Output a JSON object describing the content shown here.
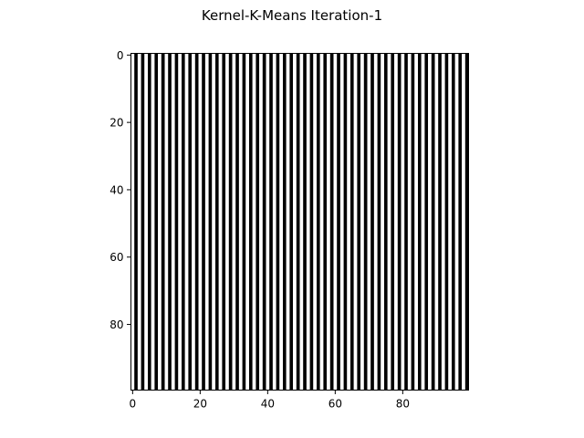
{
  "chart_data": {
    "type": "heatmap",
    "title": "Kernel-K-Means Iteration-1",
    "xlabel": "",
    "ylabel": "",
    "rows": 100,
    "cols": 100,
    "pattern": "alternating vertical stripes, period 2 columns",
    "column_values": [
      0,
      1,
      0,
      1,
      0,
      1,
      0,
      1,
      0,
      1,
      0,
      1,
      0,
      1,
      0,
      1,
      0,
      1,
      0,
      1,
      0,
      1,
      0,
      1,
      0,
      1,
      0,
      1,
      0,
      1,
      0,
      1,
      0,
      1,
      0,
      1,
      0,
      1,
      0,
      1,
      0,
      1,
      0,
      1,
      0,
      1,
      0,
      1,
      0,
      1,
      0,
      1,
      0,
      1,
      0,
      1,
      0,
      1,
      0,
      1,
      0,
      1,
      0,
      1,
      0,
      1,
      0,
      1,
      0,
      1,
      0,
      1,
      0,
      1,
      0,
      1,
      0,
      1,
      0,
      1,
      0,
      1,
      0,
      1,
      0,
      1,
      0,
      1,
      0,
      1,
      0,
      1,
      0,
      1,
      0,
      1,
      0,
      1,
      0,
      1
    ],
    "colormap": {
      "0": "#ffffff",
      "1": "#000000"
    },
    "xlim": [
      -0.5,
      99.5
    ],
    "ylim": [
      99.5,
      -0.5
    ],
    "xticks": [
      0,
      20,
      40,
      60,
      80
    ],
    "yticks": [
      0,
      20,
      40,
      60,
      80
    ],
    "xtick_labels": [
      "0",
      "20",
      "40",
      "60",
      "80"
    ],
    "ytick_labels": [
      "0",
      "20",
      "40",
      "60",
      "80"
    ],
    "grid": false
  }
}
